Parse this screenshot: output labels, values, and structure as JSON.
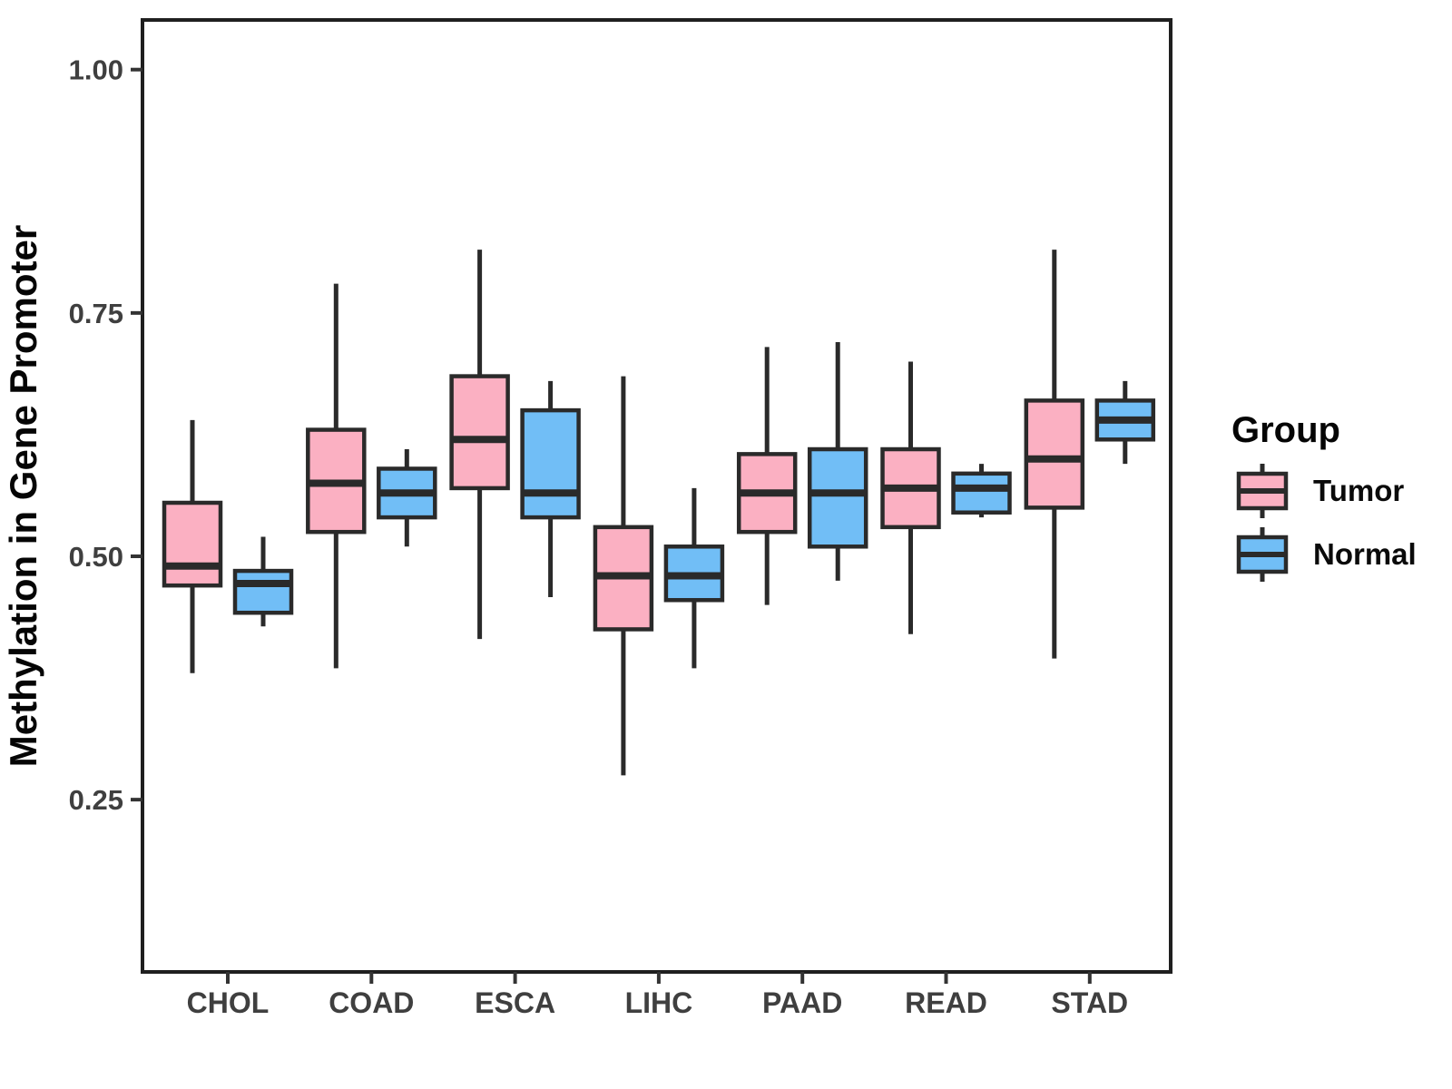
{
  "chart_data": {
    "type": "boxplot",
    "title": "",
    "xlabel": "",
    "ylabel": "Methylation in Gene Promoter",
    "categories": [
      "CHOL",
      "COAD",
      "ESCA",
      "LIHC",
      "PAAD",
      "READ",
      "STAD"
    ],
    "y_ticks": [
      0.25,
      0.5,
      0.75,
      1.0
    ],
    "y_tick_labels": [
      "0.25",
      "0.50",
      "0.75",
      "1.00"
    ],
    "ylim": [
      0.073,
      1.051
    ],
    "grid": false,
    "panel_border": true,
    "colors": {
      "tumor_fill": "#FBB0C2",
      "normal_fill": "#71BEF6",
      "box_stroke": "#2A2A2A",
      "panel_stroke": "#1F1F1F",
      "tick_stroke": "#333333"
    },
    "legend": {
      "title": "Group",
      "position": "right",
      "entries": [
        {
          "label": "Tumor",
          "color": "#FBB0C2"
        },
        {
          "label": "Normal",
          "color": "#71BEF6"
        }
      ]
    },
    "series": [
      {
        "name": "Tumor",
        "color": "#FBB0C2",
        "boxes": [
          {
            "category": "CHOL",
            "min": 0.38,
            "q1": 0.47,
            "median": 0.49,
            "q3": 0.555,
            "max": 0.64
          },
          {
            "category": "COAD",
            "min": 0.385,
            "q1": 0.525,
            "median": 0.575,
            "q3": 0.63,
            "max": 0.78
          },
          {
            "category": "ESCA",
            "min": 0.415,
            "q1": 0.57,
            "median": 0.62,
            "q3": 0.685,
            "max": 0.815
          },
          {
            "category": "LIHC",
            "min": 0.275,
            "q1": 0.425,
            "median": 0.48,
            "q3": 0.53,
            "max": 0.685
          },
          {
            "category": "PAAD",
            "min": 0.45,
            "q1": 0.525,
            "median": 0.565,
            "q3": 0.605,
            "max": 0.715
          },
          {
            "category": "READ",
            "min": 0.42,
            "q1": 0.53,
            "median": 0.57,
            "q3": 0.61,
            "max": 0.7
          },
          {
            "category": "STAD",
            "min": 0.395,
            "q1": 0.55,
            "median": 0.6,
            "q3": 0.66,
            "max": 0.815
          }
        ]
      },
      {
        "name": "Normal",
        "color": "#71BEF6",
        "boxes": [
          {
            "category": "CHOL",
            "min": 0.428,
            "q1": 0.442,
            "median": 0.472,
            "q3": 0.485,
            "max": 0.52
          },
          {
            "category": "COAD",
            "min": 0.51,
            "q1": 0.54,
            "median": 0.565,
            "q3": 0.59,
            "max": 0.61
          },
          {
            "category": "ESCA",
            "min": 0.458,
            "q1": 0.54,
            "median": 0.565,
            "q3": 0.65,
            "max": 0.68
          },
          {
            "category": "LIHC",
            "min": 0.385,
            "q1": 0.455,
            "median": 0.48,
            "q3": 0.51,
            "max": 0.57
          },
          {
            "category": "PAAD",
            "min": 0.475,
            "q1": 0.51,
            "median": 0.565,
            "q3": 0.61,
            "max": 0.72
          },
          {
            "category": "READ",
            "min": 0.54,
            "q1": 0.545,
            "median": 0.57,
            "q3": 0.585,
            "max": 0.595
          },
          {
            "category": "STAD",
            "min": 0.595,
            "q1": 0.62,
            "median": 0.64,
            "q3": 0.66,
            "max": 0.68
          }
        ]
      }
    ]
  }
}
